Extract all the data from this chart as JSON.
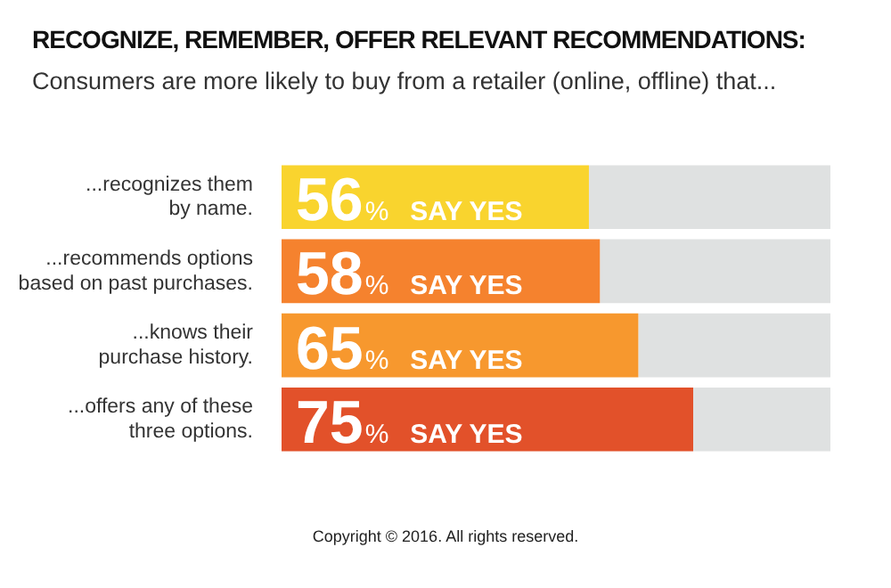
{
  "chart_data": {
    "type": "bar",
    "orientation": "horizontal",
    "stacked": true,
    "title": "RECOGNIZE, REMEMBER, OFFER RELEVANT RECOMMENDATIONS:",
    "subtitle": "Consumers are more likely to buy from a retailer (online, offline) that...",
    "categories": [
      "...recognizes them\nby name.",
      "...recommends options\nbased on past purchases.",
      "...knows their\npurchase history.",
      "...offers any of these\nthree options."
    ],
    "series": [
      {
        "colors": [
          "#f9d42e",
          "#f5822e",
          "#f7982e",
          "#e2512a"
        ],
        "values": [
          56,
          58,
          65,
          75
        ],
        "value_labels": [
          "56% SAY YES",
          "58% SAY YES",
          "65% SAY YES",
          "75% SAY YES"
        ]
      },
      {
        "color": "#dfe1e1",
        "values": [
          44,
          42,
          35,
          25
        ]
      }
    ],
    "xlim": [
      0,
      100
    ],
    "tick_labels": false,
    "legend": false,
    "annotations": [
      "Copyright © 2016. All rights reserved."
    ]
  }
}
